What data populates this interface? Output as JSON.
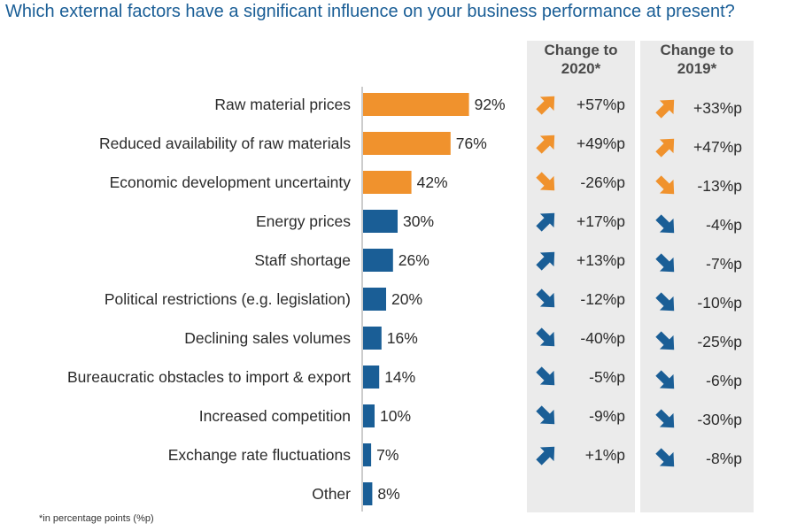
{
  "title": "Which external factors have a significant influence on your business performance at present?",
  "footnote": "*in percentage points (%p)",
  "columns": {
    "change_2020": "Change to 2020*",
    "change_2019": "Change to 2019*"
  },
  "colors": {
    "highlight": "#f0922d",
    "default": "#1a5e96",
    "panel": "#ebebeb",
    "title": "#1a5e96"
  },
  "chart_data": {
    "type": "bar",
    "orientation": "horizontal",
    "categories": [
      "Raw material prices",
      "Reduced availability of raw materials",
      "Economic development uncertainty",
      "Energy prices",
      "Staff shortage",
      "Political restrictions (e.g. legislation)",
      "Declining sales volumes",
      "Bureaucratic obstacles to import & export",
      "Increased competition",
      "Exchange rate fluctuations",
      "Other"
    ],
    "values": [
      92,
      76,
      42,
      30,
      26,
      20,
      16,
      14,
      10,
      7,
      8
    ],
    "value_labels": [
      "92%",
      "76%",
      "42%",
      "30%",
      "26%",
      "20%",
      "16%",
      "14%",
      "10%",
      "7%",
      "8%"
    ],
    "highlighted": [
      true,
      true,
      true,
      false,
      false,
      false,
      false,
      false,
      false,
      false,
      false
    ],
    "change_2020": [
      57,
      49,
      -26,
      17,
      13,
      -12,
      -40,
      -5,
      -9,
      1,
      null
    ],
    "change_2020_labels": [
      "+57%p",
      "+49%p",
      "-26%p",
      "+17%p",
      "+13%p",
      "-12%p",
      "-40%p",
      "-5%p",
      "-9%p",
      "+1%p",
      ""
    ],
    "change_2019": [
      33,
      47,
      -13,
      -4,
      -7,
      -10,
      -25,
      -6,
      -30,
      -8,
      null
    ],
    "change_2019_labels": [
      "+33%p",
      "+47%p",
      "-13%p",
      "-4%p",
      "-7%p",
      "-10%p",
      "-25%p",
      "-6%p",
      "-30%p",
      "-8%p",
      ""
    ],
    "xlim": [
      0,
      100
    ],
    "grid": false
  }
}
